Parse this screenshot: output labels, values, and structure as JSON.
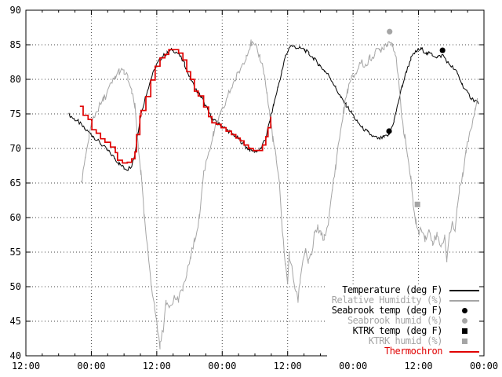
{
  "chart_data": {
    "type": "line",
    "title": "",
    "xlabel": "",
    "ylabel": "",
    "ylim": [
      40,
      90
    ],
    "ytick_step": 5,
    "x_span_hours": 84,
    "x_major_every_hours": 12,
    "x_minor_every_hours": 3,
    "x_tick_labels": [
      "12:00",
      "00:00",
      "12:00",
      "00:00",
      "12:00",
      "00:00",
      "12:00",
      "00:00"
    ],
    "grid": "dotted, at every major tick",
    "legend_position": "bottom-right, opaque white, no border",
    "colors": {
      "black": "#000000",
      "gray": "#a5a5a5",
      "red": "#e00000",
      "grid": "#444444",
      "background": "#ffffff"
    },
    "series": [
      {
        "name": "Temperature (deg F)",
        "color": "black",
        "style": "noisy-line",
        "noise": 0.3,
        "width": 1,
        "points": [
          [
            7.9,
            74.9
          ],
          [
            8.8,
            74.3
          ],
          [
            9.6,
            73.9
          ],
          [
            10.8,
            72.8
          ],
          [
            12.2,
            71.9
          ],
          [
            13.7,
            70.7
          ],
          [
            15.1,
            69.6
          ],
          [
            16.3,
            68.6
          ],
          [
            17.1,
            67.8
          ],
          [
            18,
            67.2
          ],
          [
            18.7,
            67
          ],
          [
            19.4,
            67.6
          ],
          [
            20,
            69.2
          ],
          [
            20.6,
            72.5
          ],
          [
            21,
            74.6
          ],
          [
            21.9,
            77.4
          ],
          [
            22.9,
            80
          ],
          [
            23.9,
            82
          ],
          [
            24.9,
            83.2
          ],
          [
            25.9,
            83.8
          ],
          [
            26.9,
            84.3
          ],
          [
            28,
            83.7
          ],
          [
            29.1,
            82.2
          ],
          [
            30.1,
            80.2
          ],
          [
            31.2,
            78.5
          ],
          [
            32.2,
            77.4
          ],
          [
            33.2,
            75.8
          ],
          [
            34.2,
            74.2
          ],
          [
            35.2,
            73.6
          ],
          [
            36.2,
            73.1
          ],
          [
            37.4,
            72.4
          ],
          [
            38.4,
            71.8
          ],
          [
            39.4,
            71.1
          ],
          [
            40.3,
            70.2
          ],
          [
            41.1,
            69.8
          ],
          [
            42.1,
            69.6
          ],
          [
            43,
            69.9
          ],
          [
            43.9,
            71.2
          ],
          [
            44.7,
            73.9
          ],
          [
            45.4,
            76.2
          ],
          [
            46.2,
            78.8
          ],
          [
            46.9,
            81
          ],
          [
            47.6,
            83.3
          ],
          [
            48.5,
            84.9
          ],
          [
            49.3,
            84.7
          ],
          [
            50.2,
            84.5
          ],
          [
            51.1,
            84.3
          ],
          [
            51.9,
            83.7
          ],
          [
            52.8,
            83
          ],
          [
            53.8,
            82.1
          ],
          [
            54.8,
            81.2
          ],
          [
            55.8,
            80.3
          ],
          [
            56.8,
            78.8
          ],
          [
            57.8,
            77.3
          ],
          [
            58.7,
            76.3
          ],
          [
            59.7,
            75.2
          ],
          [
            60.7,
            73.9
          ],
          [
            61.7,
            73
          ],
          [
            62.7,
            72.3
          ],
          [
            63.7,
            71.7
          ],
          [
            64.7,
            71.4
          ],
          [
            65.7,
            71.6
          ],
          [
            66.6,
            72
          ],
          [
            67.5,
            74
          ],
          [
            68.3,
            76.7
          ],
          [
            69,
            79
          ],
          [
            69.8,
            81.2
          ],
          [
            70.6,
            83
          ],
          [
            71.5,
            84
          ],
          [
            72.5,
            84.4
          ],
          [
            73.5,
            83.8
          ],
          [
            74.5,
            83.6
          ],
          [
            75.5,
            83.2
          ],
          [
            76.5,
            83.5
          ],
          [
            77.4,
            82.4
          ],
          [
            78.2,
            81.8
          ],
          [
            79.1,
            80.9
          ],
          [
            80,
            79.3
          ],
          [
            80.8,
            78.2
          ],
          [
            81.7,
            77.3
          ],
          [
            82.4,
            76.9
          ],
          [
            83,
            76.6
          ]
        ]
      },
      {
        "name": "Relative Humidity (%)",
        "color": "gray",
        "style": "noisy-line",
        "noise": 0.6,
        "width": 1,
        "points": [
          [
            10.1,
            64.8
          ],
          [
            10.9,
            68.2
          ],
          [
            11.6,
            72
          ],
          [
            12.4,
            74.5
          ],
          [
            13.3,
            75.8
          ],
          [
            14.2,
            77
          ],
          [
            15.4,
            78.9
          ],
          [
            16.4,
            80.3
          ],
          [
            17.1,
            81.2
          ],
          [
            18,
            81
          ],
          [
            18.7,
            80.2
          ],
          [
            19.4,
            78
          ],
          [
            20,
            76
          ],
          [
            20.6,
            70.5
          ],
          [
            21.1,
            66.5
          ],
          [
            21.7,
            60
          ],
          [
            22.3,
            55.5
          ],
          [
            23,
            50.5
          ],
          [
            23.6,
            47
          ],
          [
            24.2,
            43.5
          ],
          [
            24.6,
            41.5
          ],
          [
            25.2,
            44
          ],
          [
            25.7,
            47.5
          ],
          [
            26.5,
            47.5
          ],
          [
            27.2,
            48.5
          ],
          [
            28,
            48
          ],
          [
            28.8,
            50
          ],
          [
            29.5,
            51.5
          ],
          [
            30.2,
            54.5
          ],
          [
            30.9,
            56.5
          ],
          [
            31.8,
            60
          ],
          [
            32.6,
            66.5
          ],
          [
            33.5,
            69.5
          ],
          [
            34.4,
            72
          ],
          [
            35.2,
            74
          ],
          [
            36.1,
            75.5
          ],
          [
            37,
            77.5
          ],
          [
            37.8,
            79
          ],
          [
            38.7,
            80.5
          ],
          [
            39.6,
            82
          ],
          [
            40.4,
            83.5
          ],
          [
            41.3,
            85.2
          ],
          [
            42.1,
            84.6
          ],
          [
            42.9,
            83.3
          ],
          [
            43.6,
            81.3
          ],
          [
            44.2,
            78
          ],
          [
            44.7,
            75
          ],
          [
            45.3,
            71.5
          ],
          [
            45.9,
            68.5
          ],
          [
            46.5,
            64.5
          ],
          [
            47,
            58.5
          ],
          [
            47.6,
            53
          ],
          [
            48,
            50.8
          ],
          [
            48.3,
            54.5
          ],
          [
            48.8,
            52.5
          ],
          [
            49.3,
            50
          ],
          [
            49.9,
            48
          ],
          [
            50.3,
            51
          ],
          [
            50.8,
            54
          ],
          [
            51.3,
            55.5
          ],
          [
            51.8,
            53.5
          ],
          [
            52.4,
            54.5
          ],
          [
            52.9,
            57.5
          ],
          [
            53.5,
            58.5
          ],
          [
            54.1,
            57.5
          ],
          [
            54.7,
            57
          ],
          [
            55.2,
            58.5
          ],
          [
            55.7,
            60.5
          ],
          [
            56.2,
            64
          ],
          [
            56.8,
            67.5
          ],
          [
            57.5,
            71.5
          ],
          [
            58.3,
            75.5
          ],
          [
            59,
            78.5
          ],
          [
            59.7,
            80
          ],
          [
            60.6,
            81
          ],
          [
            61.4,
            82.5
          ],
          [
            62.3,
            82
          ],
          [
            63.1,
            83
          ],
          [
            64,
            83.8
          ],
          [
            64.9,
            84.3
          ],
          [
            65.7,
            84.8
          ],
          [
            66.4,
            85.4
          ],
          [
            67.2,
            85.3
          ],
          [
            67.7,
            84
          ],
          [
            68.3,
            80
          ],
          [
            68.9,
            75
          ],
          [
            69.5,
            71.5
          ],
          [
            70,
            69
          ],
          [
            70.6,
            65.5
          ],
          [
            71,
            62
          ],
          [
            71.5,
            59.5
          ],
          [
            72.1,
            57.5
          ],
          [
            72.6,
            58.5
          ],
          [
            73.2,
            57
          ],
          [
            73.9,
            58
          ],
          [
            74.6,
            56.5
          ],
          [
            75.4,
            57.5
          ],
          [
            76.1,
            56
          ],
          [
            76.8,
            57
          ],
          [
            77.2,
            54
          ],
          [
            77.7,
            57.5
          ],
          [
            78.2,
            59.5
          ],
          [
            78.7,
            58
          ],
          [
            79.1,
            61.5
          ],
          [
            79.5,
            64
          ],
          [
            80.1,
            66.5
          ],
          [
            80.7,
            69.5
          ],
          [
            81.2,
            71.5
          ],
          [
            81.8,
            73.5
          ],
          [
            82.4,
            76
          ],
          [
            82.8,
            77.3
          ]
        ]
      },
      {
        "name": "Thermochron",
        "color": "red",
        "style": "step",
        "noise": 0,
        "width": 1.7,
        "points": [
          [
            9.9,
            76.1
          ],
          [
            10.5,
            74.8
          ],
          [
            11.4,
            74.2
          ],
          [
            12.1,
            72.7
          ],
          [
            12.9,
            72.2
          ],
          [
            13.7,
            71.4
          ],
          [
            14.5,
            70.9
          ],
          [
            15.5,
            70.2
          ],
          [
            16.4,
            69.4
          ],
          [
            16.8,
            68.3
          ],
          [
            17.7,
            67.9
          ],
          [
            18.6,
            68
          ],
          [
            19.4,
            68.5
          ],
          [
            20,
            69.5
          ],
          [
            20.3,
            72
          ],
          [
            20.9,
            74.7
          ],
          [
            21.1,
            75.5
          ],
          [
            22,
            77.5
          ],
          [
            22.9,
            79.9
          ],
          [
            23.7,
            81.9
          ],
          [
            24.6,
            83.1
          ],
          [
            25.5,
            83.6
          ],
          [
            26.2,
            84.3
          ],
          [
            27.2,
            84.3
          ],
          [
            28,
            83.8
          ],
          [
            28.8,
            82.8
          ],
          [
            29.5,
            81.1
          ],
          [
            30.2,
            80
          ],
          [
            30.9,
            78.3
          ],
          [
            31.6,
            77.6
          ],
          [
            32.6,
            76
          ],
          [
            33.5,
            74.6
          ],
          [
            34.1,
            73.7
          ],
          [
            34.9,
            73.5
          ],
          [
            35.8,
            73
          ],
          [
            36.7,
            72.5
          ],
          [
            37.7,
            72
          ],
          [
            38.5,
            71.5
          ],
          [
            39.3,
            71.1
          ],
          [
            40,
            70.5
          ],
          [
            40.8,
            70
          ],
          [
            41.7,
            69.7
          ],
          [
            42.7,
            69.7
          ],
          [
            43.4,
            70.5
          ],
          [
            44,
            71.7
          ],
          [
            44.4,
            73
          ],
          [
            44.9,
            74.6
          ]
        ]
      }
    ],
    "markers": [
      {
        "name": "Seabrook temp (deg F)",
        "color": "black",
        "shape": "circle",
        "points": [
          [
            66.6,
            72.5
          ],
          [
            76.4,
            84.2
          ]
        ]
      },
      {
        "name": "Seabrook humid (%)",
        "color": "gray",
        "shape": "circle",
        "points": [
          [
            66.7,
            86.9
          ]
        ]
      },
      {
        "name": "KTRK temp (deg F)",
        "color": "black",
        "shape": "square",
        "points": []
      },
      {
        "name": "KTRK humid (%)",
        "color": "gray",
        "shape": "square",
        "points": [
          [
            71.8,
            61.9
          ]
        ]
      }
    ],
    "legend": [
      {
        "label": "Temperature (deg F)",
        "color": "black",
        "swatch": "line"
      },
      {
        "label": "Relative Humidity (%)",
        "color": "gray",
        "swatch": "line"
      },
      {
        "label": "Seabrook temp (deg F)",
        "color": "black",
        "swatch": "circle"
      },
      {
        "label": "Seabrook humid (%)",
        "color": "gray",
        "swatch": "circle"
      },
      {
        "label": "KTRK temp (deg F)",
        "color": "black",
        "swatch": "square"
      },
      {
        "label": "KTRK humid (%)",
        "color": "gray",
        "swatch": "square"
      },
      {
        "label": "Thermochron",
        "color": "red",
        "swatch": "line"
      }
    ]
  }
}
